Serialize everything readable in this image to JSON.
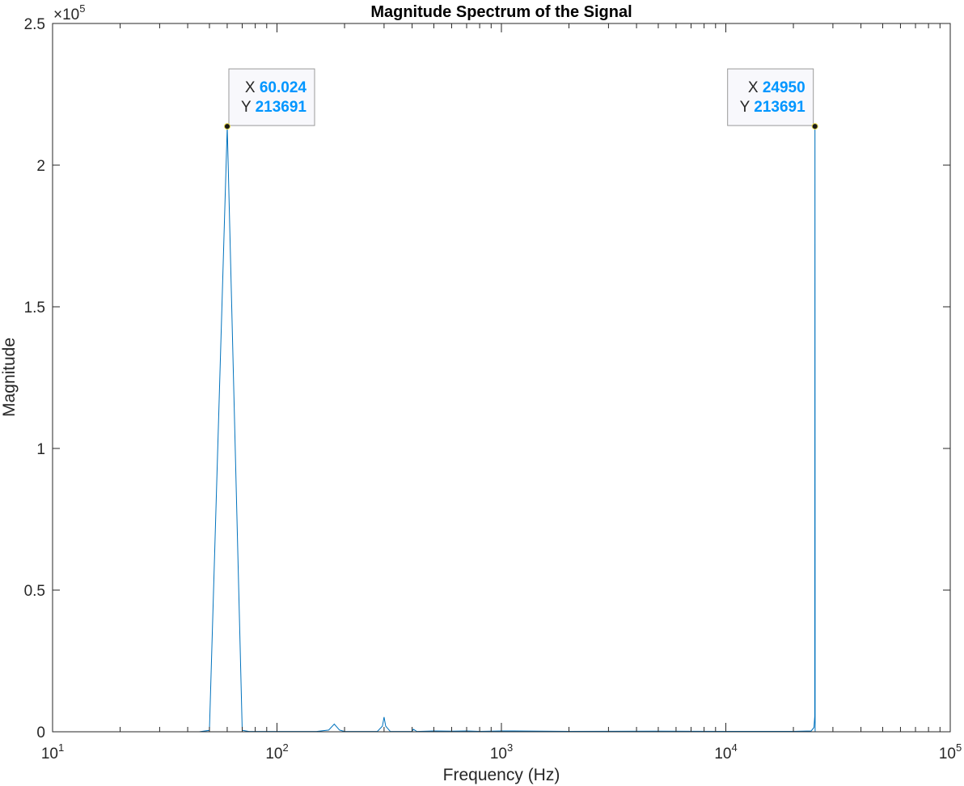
{
  "chart_data": {
    "type": "line",
    "title": "Magnitude Spectrum of the Signal",
    "xlabel": "Frequency (Hz)",
    "ylabel": "Magnitude",
    "xscale": "log",
    "xlim": [
      10,
      100000
    ],
    "ylim": [
      0,
      250000
    ],
    "y_exponent_label": "×10",
    "y_exponent_power": "5",
    "x_tick_base": "10",
    "x_ticks": [
      {
        "value": 10,
        "exp": "1"
      },
      {
        "value": 100,
        "exp": "2"
      },
      {
        "value": 1000,
        "exp": "3"
      },
      {
        "value": 10000,
        "exp": "4"
      },
      {
        "value": 100000,
        "exp": "5"
      }
    ],
    "y_ticks": [
      {
        "value": 0,
        "label": "0"
      },
      {
        "value": 50000,
        "label": "0.5"
      },
      {
        "value": 100000,
        "label": "1"
      },
      {
        "value": 150000,
        "label": "1.5"
      },
      {
        "value": 200000,
        "label": "2"
      },
      {
        "value": 250000,
        "label": "2.5"
      }
    ],
    "grid": false,
    "series": [
      {
        "color": "#0072bd",
        "x": [
          10,
          45,
          50,
          60.024,
          70,
          75,
          150,
          170,
          180,
          190,
          200,
          280,
          295,
          300,
          305,
          320,
          400,
          405,
          420,
          500,
          600,
          700,
          800,
          1000,
          2000,
          5000,
          10000,
          20000,
          24000,
          24700,
          24900,
          24950,
          24960,
          25000,
          100000
        ],
        "y": [
          0,
          0,
          500,
          213691,
          500,
          100,
          100,
          600,
          2700,
          600,
          100,
          100,
          2000,
          5200,
          2000,
          100,
          100,
          900,
          100,
          300,
          200,
          300,
          150,
          300,
          150,
          200,
          150,
          150,
          300,
          1500,
          5500,
          213691,
          213691,
          0,
          0
        ]
      }
    ],
    "datatips": [
      {
        "x_key": "X",
        "x_value": "60.024",
        "y_key": "Y",
        "y_value": "213691",
        "x": 60.024,
        "y": 213691,
        "side": "right"
      },
      {
        "x_key": "X",
        "x_value": "24950",
        "y_key": "Y",
        "y_value": "213691",
        "x": 24950,
        "y": 213691,
        "side": "left"
      }
    ]
  }
}
